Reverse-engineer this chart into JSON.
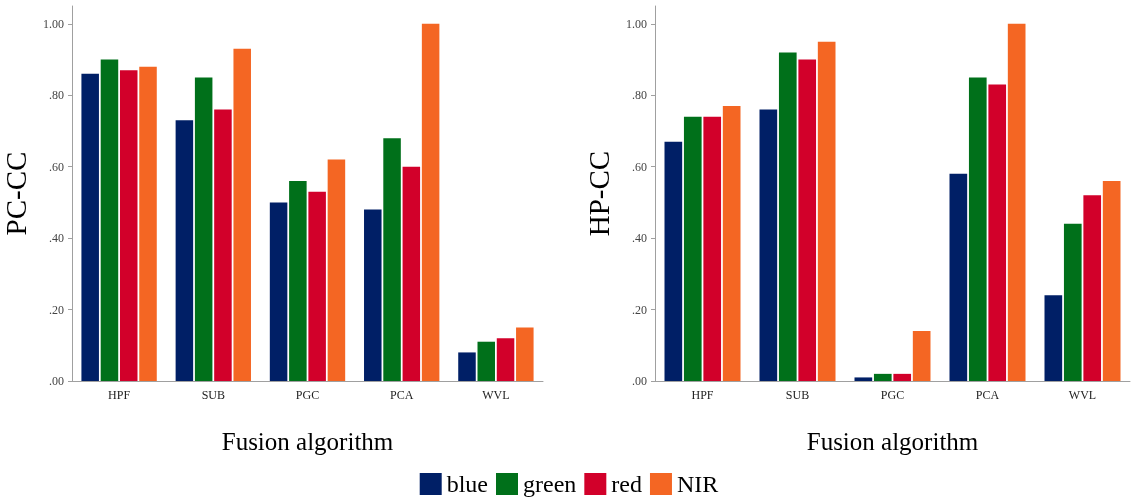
{
  "chart_data": [
    {
      "type": "bar",
      "xlabel": "Fusion algorithm",
      "ylabel": "PC-CC",
      "categories": [
        "HPF",
        "SUB",
        "PGC",
        "PCA",
        "WVL"
      ],
      "series": [
        {
          "name": "blue",
          "color": "#001f66",
          "values": [
            0.86,
            0.73,
            0.5,
            0.48,
            0.08
          ]
        },
        {
          "name": "green",
          "color": "#00701a",
          "values": [
            0.9,
            0.85,
            0.56,
            0.68,
            0.11
          ]
        },
        {
          "name": "red",
          "color": "#d2002a",
          "values": [
            0.87,
            0.76,
            0.53,
            0.6,
            0.12
          ]
        },
        {
          "name": "NIR",
          "color": "#f46623",
          "values": [
            0.88,
            0.93,
            0.62,
            1.0,
            0.15
          ]
        }
      ],
      "ylim": [
        0,
        1.05
      ],
      "yticks": [
        {
          "value": 0,
          "label": ".00"
        },
        {
          "value": 0.2,
          "label": ".20"
        },
        {
          "value": 0.4,
          "label": ".40"
        },
        {
          "value": 0.6,
          "label": ".60"
        },
        {
          "value": 0.8,
          "label": ".80"
        },
        {
          "value": 1.0,
          "label": "1.00"
        }
      ],
      "grid": false,
      "legend": "bottom"
    },
    {
      "type": "bar",
      "xlabel": "Fusion algorithm",
      "ylabel": "HP-CC",
      "categories": [
        "HPF",
        "SUB",
        "PGC",
        "PCA",
        "WVL"
      ],
      "series": [
        {
          "name": "blue",
          "color": "#001f66",
          "values": [
            0.67,
            0.76,
            0.01,
            0.58,
            0.24
          ]
        },
        {
          "name": "green",
          "color": "#00701a",
          "values": [
            0.74,
            0.92,
            0.02,
            0.85,
            0.44
          ]
        },
        {
          "name": "red",
          "color": "#d2002a",
          "values": [
            0.74,
            0.9,
            0.02,
            0.83,
            0.52
          ]
        },
        {
          "name": "NIR",
          "color": "#f46623",
          "values": [
            0.77,
            0.95,
            0.14,
            1.0,
            0.56
          ]
        }
      ],
      "ylim": [
        0,
        1.05
      ],
      "yticks": [
        {
          "value": 0,
          "label": ".00"
        },
        {
          "value": 0.2,
          "label": ".20"
        },
        {
          "value": 0.4,
          "label": ".40"
        },
        {
          "value": 0.6,
          "label": ".60"
        },
        {
          "value": 0.8,
          "label": ".80"
        },
        {
          "value": 1.0,
          "label": "1.00"
        }
      ],
      "grid": false,
      "legend": "bottom"
    }
  ]
}
